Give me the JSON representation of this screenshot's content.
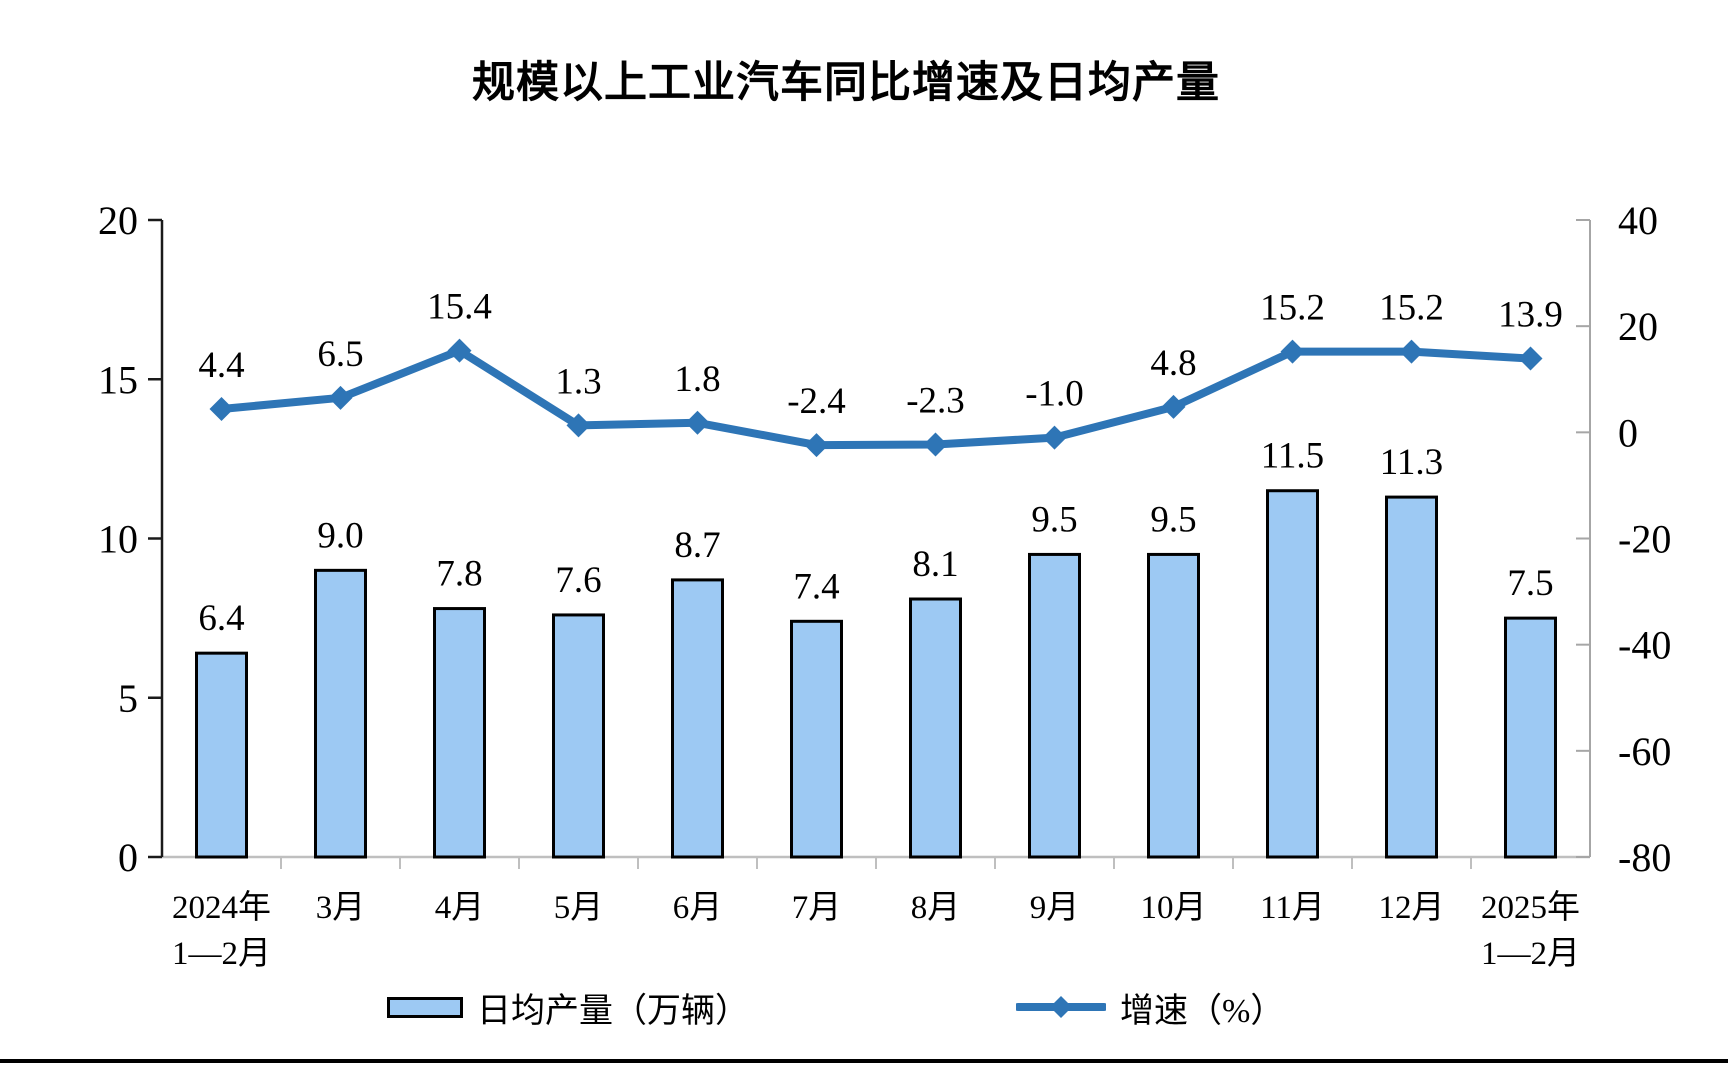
{
  "chart": {
    "title": "规模以上工业汽车同比增速及日均产量",
    "legend": {
      "bars": "日均产量（万辆）",
      "line": "增速（%）"
    }
  },
  "chart_data": {
    "type": "bar",
    "subtype": "bar-line-combo",
    "title": "规模以上工业汽车同比增速及日均产量",
    "categories": [
      "2024年\n1—2月",
      "3月",
      "4月",
      "5月",
      "6月",
      "7月",
      "8月",
      "9月",
      "10月",
      "11月",
      "12月",
      "2025年\n1—2月"
    ],
    "series": [
      {
        "name": "日均产量（万辆）",
        "type": "bar",
        "axis": "left",
        "values": [
          6.4,
          9.0,
          7.8,
          7.6,
          8.7,
          7.4,
          8.1,
          9.5,
          9.5,
          11.5,
          11.3,
          7.5
        ]
      },
      {
        "name": "增速（%）",
        "type": "line",
        "axis": "right",
        "values": [
          4.4,
          6.5,
          15.4,
          1.3,
          1.8,
          -2.4,
          -2.3,
          -1.0,
          4.8,
          15.2,
          15.2,
          13.9
        ]
      }
    ],
    "left_axis": {
      "min": 0,
      "max": 20,
      "ticks": [
        0,
        5,
        10,
        15,
        20
      ]
    },
    "right_axis": {
      "min": -80,
      "max": 40,
      "ticks": [
        40,
        20,
        0,
        -20,
        -40,
        -60,
        -80
      ]
    },
    "grid": "off",
    "legend_position": "bottom",
    "data_labels": "on",
    "colors": {
      "bar_fill": "#9DC9F3",
      "bar_border": "#000000",
      "line": "#2E75B6",
      "left_axis_line": "#1a1a1a",
      "right_axis_line": "#A6A6A6",
      "bottom_axis_line": "#BFBFBF",
      "text": "#000000"
    }
  }
}
